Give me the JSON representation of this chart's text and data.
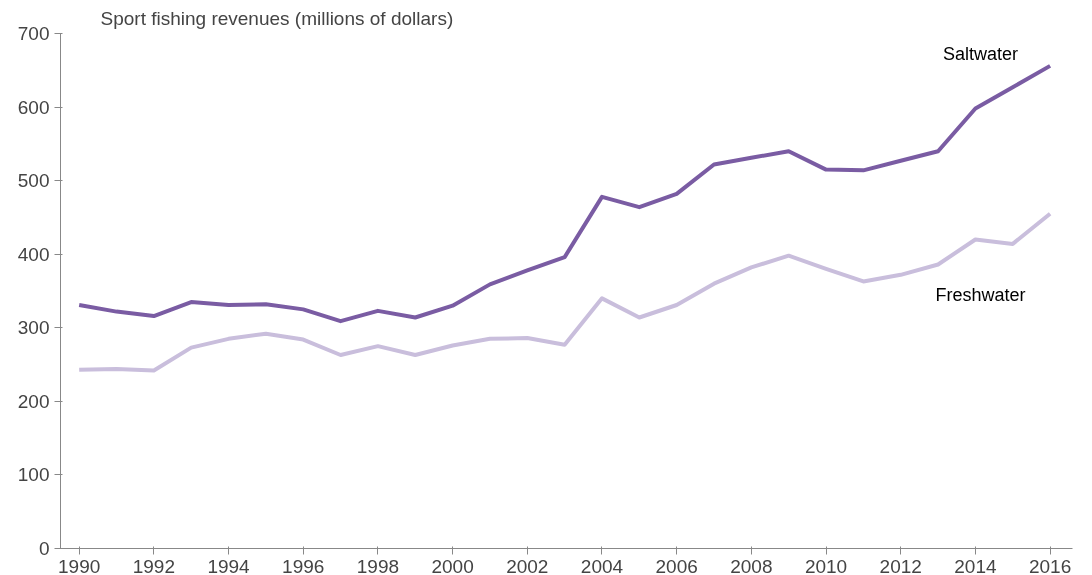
{
  "chart_data": {
    "type": "line",
    "title": "Sport fishing revenues (millions of dollars)",
    "x": [
      1990,
      1991,
      1992,
      1993,
      1994,
      1995,
      1996,
      1997,
      1998,
      1999,
      2000,
      2001,
      2002,
      2003,
      2004,
      2005,
      2006,
      2007,
      2008,
      2009,
      2010,
      2011,
      2012,
      2013,
      2014,
      2015,
      2016
    ],
    "series": [
      {
        "name": "Saltwater",
        "color": "#7a5ca3",
        "values": [
          331,
          322,
          316,
          335,
          331,
          332,
          325,
          309,
          323,
          314,
          330,
          359,
          378,
          396,
          478,
          464,
          482,
          522,
          531,
          540,
          515,
          514,
          527,
          540,
          598,
          627,
          656
        ]
      },
      {
        "name": "Freshwater",
        "color": "#c9bedc",
        "values": [
          243,
          244,
          242,
          273,
          285,
          292,
          284,
          263,
          275,
          263,
          276,
          285,
          286,
          277,
          340,
          314,
          331,
          360,
          382,
          398,
          380,
          363,
          372,
          386,
          420,
          414,
          455
        ]
      }
    ],
    "xlim": [
      1989.5,
      2016.6
    ],
    "xticks": [
      1990,
      1992,
      1994,
      1996,
      1998,
      2000,
      2002,
      2004,
      2006,
      2008,
      2010,
      2012,
      2014,
      2016
    ],
    "ylim": [
      0,
      700
    ],
    "yticks": [
      0,
      100,
      200,
      300,
      400,
      500,
      600,
      700
    ],
    "grid": false,
    "legend": false,
    "marker": "none",
    "line_style": "solid"
  }
}
